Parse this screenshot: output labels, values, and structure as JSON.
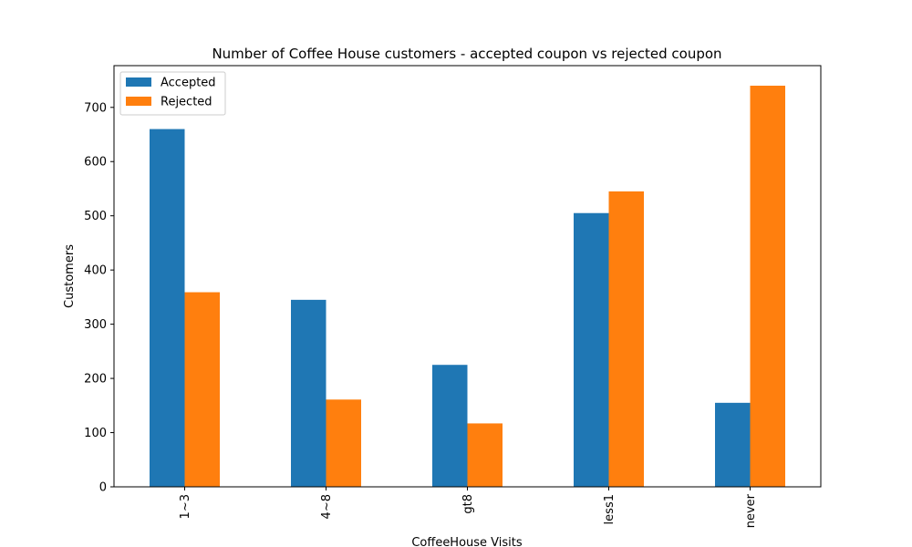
{
  "chart_data": {
    "type": "bar",
    "title": "Number of Coffee House customers - accepted coupon vs rejected coupon",
    "xlabel": "CoffeeHouse Visits",
    "ylabel": "Customers",
    "categories": [
      "1~3",
      "4~8",
      "gt8",
      "less1",
      "never"
    ],
    "series": [
      {
        "name": "Accepted",
        "color": "#1f77b4",
        "values": [
          660,
          345,
          225,
          505,
          155
        ]
      },
      {
        "name": "Rejected",
        "color": "#ff7f0e",
        "values": [
          359,
          161,
          117,
          545,
          740
        ]
      }
    ],
    "ylim": [
      0,
      777
    ],
    "yticks": [
      0,
      100,
      200,
      300,
      400,
      500,
      600,
      700
    ],
    "grid": false,
    "legend_position": "top-left"
  }
}
